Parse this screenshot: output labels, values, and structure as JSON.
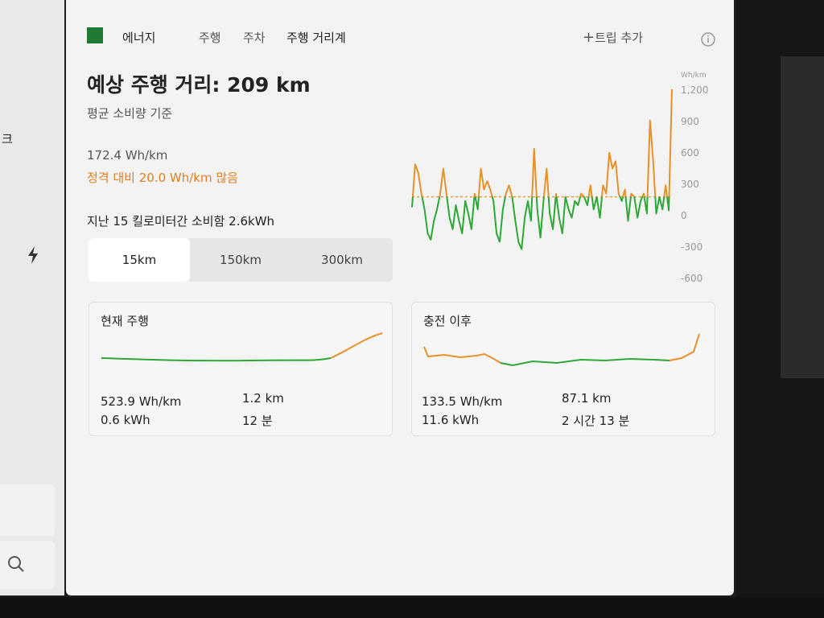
{
  "left_panel": {
    "partial_text": "크"
  },
  "header": {
    "section": "에너지",
    "tabs": [
      "주행",
      "주차",
      "주행 거리계"
    ],
    "add_trip": "트립 추가"
  },
  "summary": {
    "title": "예상 주행 거리: 209 km",
    "subtitle": "평균 소비량 기준",
    "average": "172.4 Wh/km",
    "difference": "정격 대비 20.0 Wh/km 많음",
    "recent": "지난 15 킬로미터간 소비함 2.6kWh"
  },
  "range_buttons": [
    "15km",
    "150km",
    "300km"
  ],
  "cards": [
    {
      "title": "현재 주행",
      "consumption": "523.9 Wh/km",
      "energy": "0.6 kWh",
      "distance": "1.2 km",
      "time": "12 분"
    },
    {
      "title": "충전 이후",
      "consumption": "133.5 Wh/km",
      "energy": "11.6 kWh",
      "distance": "87.1 km",
      "time": "2 시간 13 분"
    }
  ],
  "chart_data": {
    "type": "line",
    "y_unit": "Wh/km",
    "ylim": [
      -600,
      1200
    ],
    "yticks": [
      {
        "value": 1200,
        "label": "1,200"
      },
      900,
      600,
      300,
      0,
      -300,
      -600
    ],
    "reference": 180,
    "above_color": "#e8902a",
    "below_color": "#2ea836",
    "values": [
      80,
      490,
      410,
      210,
      60,
      -170,
      -230,
      -50,
      60,
      210,
      450,
      210,
      -20,
      -130,
      100,
      -50,
      -170,
      140,
      20,
      -130,
      210,
      60,
      450,
      250,
      330,
      250,
      140,
      -170,
      -250,
      60,
      210,
      290,
      180,
      -50,
      -250,
      -320,
      -20,
      140,
      -50,
      640,
      60,
      -210,
      140,
      450,
      20,
      -130,
      210,
      -20,
      -170,
      180,
      60,
      -20,
      140,
      100,
      210,
      180,
      100,
      290,
      60,
      180,
      -20,
      290,
      210,
      600,
      450,
      520,
      210,
      140,
      250,
      -50,
      210,
      180,
      -20,
      140,
      210,
      20,
      910,
      520,
      20,
      180,
      60,
      290,
      50,
      1210
    ]
  }
}
